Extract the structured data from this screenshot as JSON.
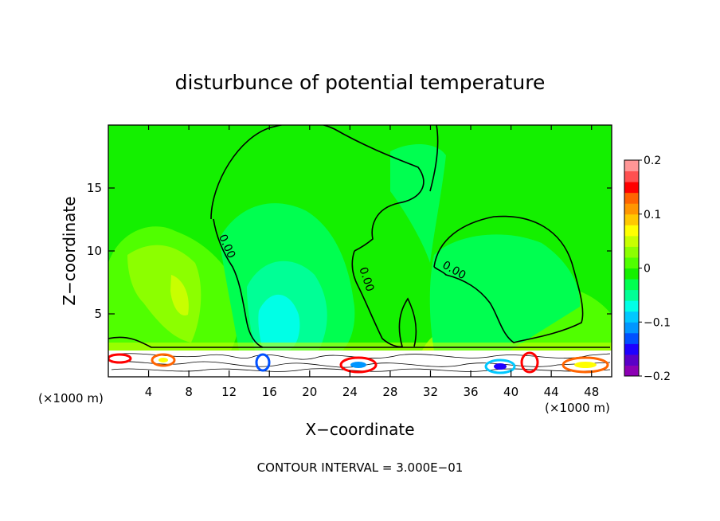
{
  "chart_data": {
    "type": "heatmap",
    "title": "disturbunce of potential temperature",
    "xlabel": "X−coordinate",
    "ylabel": "Z−coordinate",
    "x_unit_left": "(×1000 m)",
    "x_unit_right": "(×1000 m)",
    "xlim": [
      0,
      50
    ],
    "ylim": [
      0,
      20
    ],
    "x_ticks": [
      4,
      8,
      12,
      16,
      20,
      24,
      28,
      32,
      36,
      40,
      44,
      48
    ],
    "y_ticks": [
      5,
      10,
      15
    ],
    "contour_labels": [
      "0.00",
      "0.00",
      "0.00"
    ],
    "footer": "CONTOUR INTERVAL = 3.000E−01",
    "colorbar": {
      "range": [
        -0.2,
        0.2
      ],
      "tick_values": [
        0.2,
        0.1,
        0,
        -0.1,
        -0.2
      ],
      "tick_labels": [
        "0.2",
        "0.1",
        "0",
        "−0.1",
        "−0.2"
      ],
      "colors": [
        "#8c00b4",
        "#5a00c8",
        "#1e00ff",
        "#0050ff",
        "#0096ff",
        "#00c8ff",
        "#00ffe6",
        "#00ff96",
        "#00ff50",
        "#14f000",
        "#50ff00",
        "#8cff00",
        "#c8ff00",
        "#ffff00",
        "#ffc800",
        "#ff9600",
        "#ff6400",
        "#ff0000",
        "#ff5050",
        "#ff9696"
      ]
    }
  }
}
